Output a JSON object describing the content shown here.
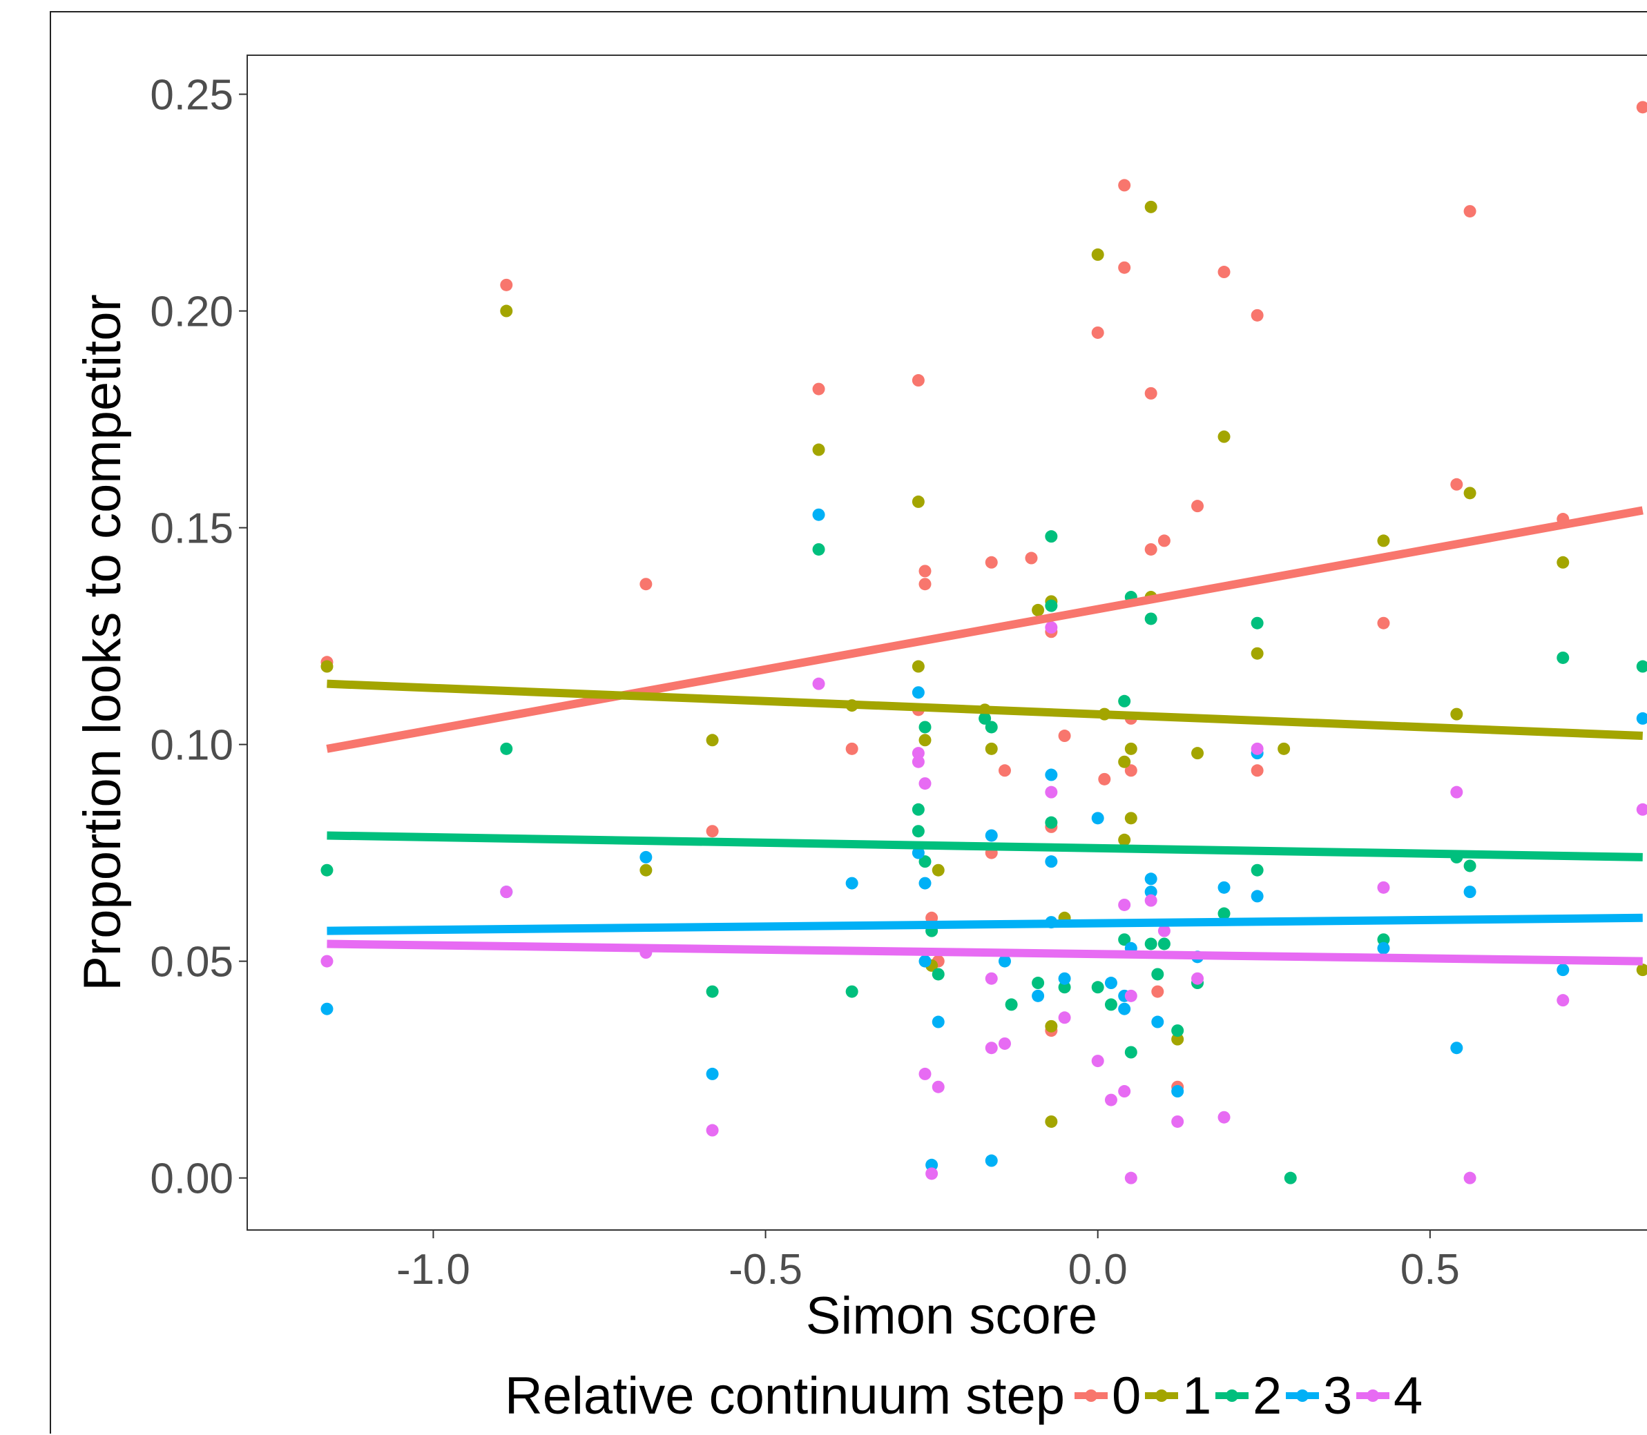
{
  "chart_data": {
    "type": "scatter",
    "title": "",
    "xlabel": "Simon score",
    "ylabel": "Proportion looks to competitor",
    "xlim": [
      -1.28,
      0.84
    ],
    "ylim": [
      -0.012,
      0.259
    ],
    "x_ticks": [
      -1.0,
      -0.5,
      0.0,
      0.5
    ],
    "x_tick_labels": [
      "-1.0",
      "-0.5",
      "0.0",
      "0.5"
    ],
    "y_ticks": [
      0.0,
      0.05,
      0.1,
      0.15,
      0.2,
      0.25
    ],
    "y_tick_labels": [
      "0.00",
      "0.05",
      "0.10",
      "0.15",
      "0.20",
      "0.25"
    ],
    "grid": false,
    "legend": {
      "title": "Relative continuum step",
      "position": "bottom"
    },
    "series": [
      {
        "name": "0",
        "color": "#F8766D",
        "fit_line": [
          [
            -1.16,
            0.099
          ],
          [
            0.82,
            0.154
          ]
        ],
        "points": [
          [
            -1.16,
            0.119
          ],
          [
            -0.89,
            0.206
          ],
          [
            -0.68,
            0.137
          ],
          [
            -0.58,
            0.08
          ],
          [
            -0.42,
            0.182
          ],
          [
            -0.37,
            0.099
          ],
          [
            -0.27,
            0.184
          ],
          [
            -0.26,
            0.14
          ],
          [
            -0.26,
            0.137
          ],
          [
            -0.25,
            0.06
          ],
          [
            -0.27,
            0.108
          ],
          [
            -0.24,
            0.05
          ],
          [
            -0.16,
            0.142
          ],
          [
            -0.16,
            0.075
          ],
          [
            -0.14,
            0.094
          ],
          [
            -0.1,
            0.143
          ],
          [
            -0.07,
            0.126
          ],
          [
            -0.07,
            0.081
          ],
          [
            -0.05,
            0.102
          ],
          [
            -0.07,
            0.034
          ],
          [
            0.0,
            0.195
          ],
          [
            0.01,
            0.092
          ],
          [
            0.04,
            0.229
          ],
          [
            0.04,
            0.21
          ],
          [
            0.05,
            0.094
          ],
          [
            0.05,
            0.106
          ],
          [
            0.08,
            0.181
          ],
          [
            0.08,
            0.145
          ],
          [
            0.1,
            0.147
          ],
          [
            0.09,
            0.043
          ],
          [
            0.12,
            0.021
          ],
          [
            0.15,
            0.155
          ],
          [
            0.19,
            0.209
          ],
          [
            0.24,
            0.199
          ],
          [
            0.24,
            0.094
          ],
          [
            0.43,
            0.128
          ],
          [
            0.54,
            0.16
          ],
          [
            0.56,
            0.223
          ],
          [
            0.7,
            0.152
          ],
          [
            0.82,
            0.247
          ]
        ]
      },
      {
        "name": "1",
        "color": "#A3A500",
        "fit_line": [
          [
            -1.16,
            0.114
          ],
          [
            0.82,
            0.102
          ]
        ],
        "points": [
          [
            -1.16,
            0.118
          ],
          [
            -0.89,
            0.2
          ],
          [
            -0.68,
            0.071
          ],
          [
            -0.58,
            0.101
          ],
          [
            -0.42,
            0.168
          ],
          [
            -0.37,
            0.109
          ],
          [
            -0.27,
            0.156
          ],
          [
            -0.27,
            0.118
          ],
          [
            -0.26,
            0.101
          ],
          [
            -0.25,
            0.049
          ],
          [
            -0.24,
            0.071
          ],
          [
            -0.17,
            0.108
          ],
          [
            -0.16,
            0.099
          ],
          [
            -0.09,
            0.131
          ],
          [
            -0.07,
            0.133
          ],
          [
            -0.05,
            0.06
          ],
          [
            -0.07,
            0.035
          ],
          [
            -0.07,
            0.013
          ],
          [
            0.0,
            0.213
          ],
          [
            0.01,
            0.107
          ],
          [
            0.04,
            0.078
          ],
          [
            0.04,
            0.096
          ],
          [
            0.05,
            0.083
          ],
          [
            0.05,
            0.099
          ],
          [
            0.08,
            0.224
          ],
          [
            0.08,
            0.134
          ],
          [
            0.12,
            0.032
          ],
          [
            0.15,
            0.098
          ],
          [
            0.19,
            0.171
          ],
          [
            0.24,
            0.121
          ],
          [
            0.28,
            0.099
          ],
          [
            0.43,
            0.147
          ],
          [
            0.54,
            0.107
          ],
          [
            0.56,
            0.158
          ],
          [
            0.7,
            0.142
          ],
          [
            0.82,
            0.048
          ]
        ]
      },
      {
        "name": "2",
        "color": "#00BF7D",
        "fit_line": [
          [
            -1.16,
            0.079
          ],
          [
            0.82,
            0.074
          ]
        ],
        "points": [
          [
            -1.16,
            0.071
          ],
          [
            -0.89,
            0.099
          ],
          [
            -0.58,
            0.043
          ],
          [
            -0.42,
            0.145
          ],
          [
            -0.37,
            0.043
          ],
          [
            -0.27,
            0.085
          ],
          [
            -0.27,
            0.08
          ],
          [
            -0.26,
            0.104
          ],
          [
            -0.26,
            0.073
          ],
          [
            -0.25,
            0.057
          ],
          [
            -0.24,
            0.047
          ],
          [
            -0.17,
            0.106
          ],
          [
            -0.16,
            0.104
          ],
          [
            -0.13,
            0.04
          ],
          [
            -0.09,
            0.045
          ],
          [
            -0.07,
            0.148
          ],
          [
            -0.07,
            0.132
          ],
          [
            -0.07,
            0.082
          ],
          [
            -0.05,
            0.044
          ],
          [
            0.0,
            0.044
          ],
          [
            0.02,
            0.04
          ],
          [
            0.04,
            0.11
          ],
          [
            0.04,
            0.055
          ],
          [
            0.05,
            0.134
          ],
          [
            0.05,
            0.029
          ],
          [
            0.08,
            0.129
          ],
          [
            0.08,
            0.054
          ],
          [
            0.09,
            0.047
          ],
          [
            0.1,
            0.054
          ],
          [
            0.12,
            0.034
          ],
          [
            0.15,
            0.045
          ],
          [
            0.19,
            0.061
          ],
          [
            0.24,
            0.128
          ],
          [
            0.24,
            0.071
          ],
          [
            0.29,
            0.0
          ],
          [
            0.43,
            0.055
          ],
          [
            0.54,
            0.074
          ],
          [
            0.56,
            0.072
          ],
          [
            0.7,
            0.12
          ],
          [
            0.82,
            0.118
          ]
        ]
      },
      {
        "name": "3",
        "color": "#00B0F6",
        "fit_line": [
          [
            -1.16,
            0.057
          ],
          [
            0.82,
            0.06
          ]
        ],
        "points": [
          [
            -1.16,
            0.039
          ],
          [
            -0.89,
            0.066
          ],
          [
            -0.68,
            0.074
          ],
          [
            -0.58,
            0.024
          ],
          [
            -0.42,
            0.153
          ],
          [
            -0.37,
            0.068
          ],
          [
            -0.27,
            0.112
          ],
          [
            -0.27,
            0.075
          ],
          [
            -0.26,
            0.068
          ],
          [
            -0.26,
            0.05
          ],
          [
            -0.24,
            0.036
          ],
          [
            -0.25,
            0.003
          ],
          [
            -0.16,
            0.079
          ],
          [
            -0.16,
            0.004
          ],
          [
            -0.14,
            0.05
          ],
          [
            -0.09,
            0.042
          ],
          [
            -0.07,
            0.093
          ],
          [
            -0.07,
            0.073
          ],
          [
            -0.07,
            0.059
          ],
          [
            -0.05,
            0.046
          ],
          [
            0.0,
            0.083
          ],
          [
            0.02,
            0.045
          ],
          [
            0.04,
            0.039
          ],
          [
            0.04,
            0.042
          ],
          [
            0.05,
            0.053
          ],
          [
            0.08,
            0.069
          ],
          [
            0.08,
            0.066
          ],
          [
            0.09,
            0.036
          ],
          [
            0.12,
            0.02
          ],
          [
            0.15,
            0.051
          ],
          [
            0.19,
            0.067
          ],
          [
            0.24,
            0.098
          ],
          [
            0.24,
            0.065
          ],
          [
            0.43,
            0.053
          ],
          [
            0.54,
            0.03
          ],
          [
            0.56,
            0.066
          ],
          [
            0.7,
            0.048
          ],
          [
            0.82,
            0.106
          ]
        ]
      },
      {
        "name": "4",
        "color": "#E76BF3",
        "fit_line": [
          [
            -1.16,
            0.054
          ],
          [
            0.82,
            0.05
          ]
        ],
        "points": [
          [
            -1.16,
            0.05
          ],
          [
            -0.89,
            0.066
          ],
          [
            -0.68,
            0.052
          ],
          [
            -0.58,
            0.011
          ],
          [
            -0.42,
            0.114
          ],
          [
            -0.27,
            0.098
          ],
          [
            -0.27,
            0.096
          ],
          [
            -0.26,
            0.091
          ],
          [
            -0.26,
            0.024
          ],
          [
            -0.25,
            0.001
          ],
          [
            -0.24,
            0.021
          ],
          [
            -0.16,
            0.046
          ],
          [
            -0.16,
            0.03
          ],
          [
            -0.14,
            0.031
          ],
          [
            -0.07,
            0.127
          ],
          [
            -0.07,
            0.089
          ],
          [
            -0.05,
            0.037
          ],
          [
            0.0,
            0.027
          ],
          [
            0.02,
            0.018
          ],
          [
            0.04,
            0.063
          ],
          [
            0.04,
            0.02
          ],
          [
            0.05,
            0.042
          ],
          [
            0.05,
            0.0
          ],
          [
            0.08,
            0.064
          ],
          [
            0.1,
            0.057
          ],
          [
            0.12,
            0.013
          ],
          [
            0.15,
            0.046
          ],
          [
            0.19,
            0.014
          ],
          [
            0.24,
            0.099
          ],
          [
            0.43,
            0.067
          ],
          [
            0.54,
            0.089
          ],
          [
            0.56,
            0.0
          ],
          [
            0.7,
            0.041
          ],
          [
            0.82,
            0.085
          ]
        ]
      }
    ]
  }
}
